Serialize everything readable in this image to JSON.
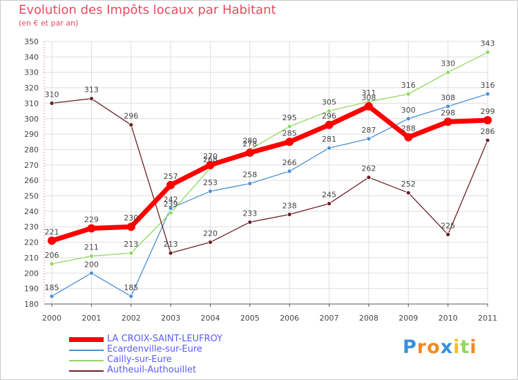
{
  "header": {
    "title": "Evolution des Impôts locaux par Habitant",
    "subtitle": "(en € et par an)"
  },
  "chart_data": {
    "type": "line",
    "x": [
      "2000",
      "2001",
      "2002",
      "2003",
      "2004",
      "2005",
      "2006",
      "2007",
      "2008",
      "2009",
      "2010",
      "2011"
    ],
    "ylim": [
      180,
      350
    ],
    "yticks": [
      180,
      190,
      200,
      210,
      220,
      230,
      240,
      250,
      260,
      270,
      280,
      290,
      300,
      310,
      320,
      330,
      340,
      350
    ],
    "grid": true,
    "legend_position": "bottom-left",
    "series": [
      {
        "name": "LA CROIX-SAINT-LEUFROY",
        "color": "#ff0000",
        "values": [
          221,
          229,
          230,
          257,
          270,
          278,
          285,
          296,
          308,
          288,
          298,
          299
        ]
      },
      {
        "name": "Ecardenville-sur-Eure",
        "color": "#4a8fd1",
        "values": [
          185,
          200,
          185,
          242,
          253,
          258,
          266,
          281,
          287,
          300,
          308,
          316
        ]
      },
      {
        "name": "Cailly-sur-Eure",
        "color": "#90d860",
        "values": [
          206,
          211,
          213,
          239,
          268,
          280,
          295,
          305,
          311,
          316,
          330,
          343
        ]
      },
      {
        "name": "Autheuil-Authouillet",
        "color": "#6b1f25",
        "values": [
          310,
          313,
          296,
          213,
          220,
          233,
          238,
          245,
          262,
          252,
          225,
          286
        ]
      }
    ]
  },
  "logo": {
    "letters": [
      {
        "ch": "P",
        "color": "#3a8fd8"
      },
      {
        "ch": "r",
        "color": "#f08a24"
      },
      {
        "ch": "o",
        "color": "#f08a24"
      },
      {
        "ch": "x",
        "color": "#3a8fd8"
      },
      {
        "ch": "i",
        "color": "#f3c21a"
      },
      {
        "ch": "t",
        "color": "#90d860"
      },
      {
        "ch": "i",
        "color": "#f08a24"
      }
    ]
  }
}
